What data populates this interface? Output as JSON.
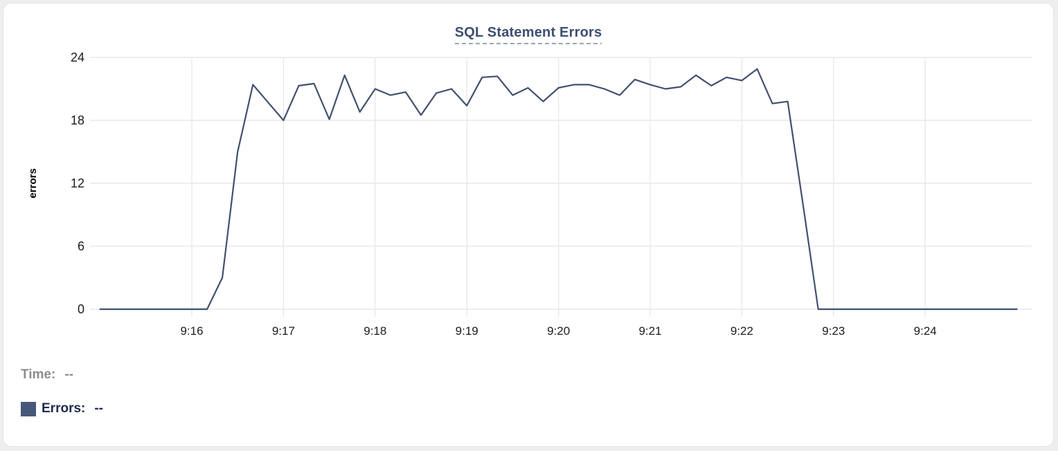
{
  "chart": {
    "title": "SQL Statement Errors"
  },
  "footer": {
    "time_label": "Time:",
    "time_value": "--",
    "errors_label": "Errors:",
    "errors_value": "--"
  },
  "colors": {
    "page_bg": "#edeef0",
    "card_bg": "#ffffff",
    "card_border": "#e2e3e5",
    "title": "#3d4e70",
    "title_underline": "#9aa3bd",
    "grid": "#e9e9e9",
    "axis_text": "#1b1b1b",
    "ylabel_text": "#000000",
    "line": "#41506f",
    "swatch": "#47587a",
    "time_label": "#8d8d8d",
    "errors_label": "#1d2b4f"
  },
  "chart_data": {
    "type": "line",
    "title": "SQL Statement Errors",
    "xlabel": "",
    "ylabel": "errors",
    "ylim": [
      0,
      24
    ],
    "y_ticks": [
      0,
      6,
      12,
      18,
      24
    ],
    "x_ticks": [
      "9:16",
      "9:17",
      "9:18",
      "9:19",
      "9:20",
      "9:21",
      "9:22",
      "9:23",
      "9:24"
    ],
    "grid": true,
    "legend_position": "bottom-left",
    "series": [
      {
        "name": "Errors",
        "color": "#41506f",
        "points": [
          [
            "9:15:00",
            0
          ],
          [
            "9:15:10",
            0
          ],
          [
            "9:15:20",
            0
          ],
          [
            "9:15:30",
            0
          ],
          [
            "9:15:40",
            0
          ],
          [
            "9:15:50",
            0
          ],
          [
            "9:16:00",
            0
          ],
          [
            "9:16:10",
            0
          ],
          [
            "9:16:20",
            3
          ],
          [
            "9:16:30",
            15
          ],
          [
            "9:16:40",
            21.4
          ],
          [
            "9:16:50",
            19.7
          ],
          [
            "9:17:00",
            18
          ],
          [
            "9:17:10",
            21.3
          ],
          [
            "9:17:20",
            21.5
          ],
          [
            "9:17:30",
            18.1
          ],
          [
            "9:17:40",
            22.3
          ],
          [
            "9:17:50",
            18.8
          ],
          [
            "9:18:00",
            21
          ],
          [
            "9:18:10",
            20.4
          ],
          [
            "9:18:20",
            20.7
          ],
          [
            "9:18:30",
            18.5
          ],
          [
            "9:18:40",
            20.6
          ],
          [
            "9:18:50",
            21
          ],
          [
            "9:19:00",
            19.4
          ],
          [
            "9:19:10",
            22.1
          ],
          [
            "9:19:20",
            22.2
          ],
          [
            "9:19:30",
            20.4
          ],
          [
            "9:19:40",
            21.1
          ],
          [
            "9:19:50",
            19.8
          ],
          [
            "9:20:00",
            21.1
          ],
          [
            "9:20:10",
            21.4
          ],
          [
            "9:20:20",
            21.4
          ],
          [
            "9:20:30",
            21
          ],
          [
            "9:20:40",
            20.4
          ],
          [
            "9:20:50",
            21.9
          ],
          [
            "9:21:00",
            21.4
          ],
          [
            "9:21:10",
            21
          ],
          [
            "9:21:20",
            21.2
          ],
          [
            "9:21:30",
            22.3
          ],
          [
            "9:21:40",
            21.3
          ],
          [
            "9:21:50",
            22.1
          ],
          [
            "9:22:00",
            21.8
          ],
          [
            "9:22:10",
            22.9
          ],
          [
            "9:22:20",
            19.6
          ],
          [
            "9:22:30",
            19.8
          ],
          [
            "9:22:40",
            10
          ],
          [
            "9:22:50",
            0
          ],
          [
            "9:23:00",
            0
          ],
          [
            "9:23:10",
            0
          ],
          [
            "9:23:20",
            0
          ],
          [
            "9:23:30",
            0
          ],
          [
            "9:23:40",
            0
          ],
          [
            "9:23:50",
            0
          ],
          [
            "9:24:00",
            0
          ],
          [
            "9:24:10",
            0
          ],
          [
            "9:24:20",
            0
          ],
          [
            "9:24:30",
            0
          ],
          [
            "9:24:40",
            0
          ],
          [
            "9:24:50",
            0
          ],
          [
            "9:25:00",
            0
          ]
        ]
      }
    ]
  }
}
